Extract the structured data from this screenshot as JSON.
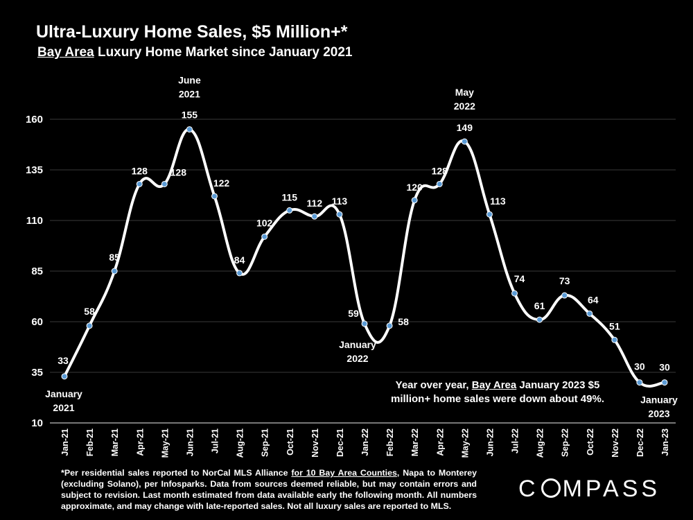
{
  "title": "Ultra-Luxury Home Sales, $5 Million+*",
  "subtitle": {
    "underlined": "Bay Area",
    "rest": " Luxury Home Market since January 2021"
  },
  "chart_data": {
    "type": "line",
    "title": "Ultra-Luxury Home Sales, $5 Million+*",
    "categories": [
      "Jan-21",
      "Feb-21",
      "Mar-21",
      "Apr-21",
      "May-21",
      "Jun-21",
      "Jul-21",
      "Aug-21",
      "Sep-21",
      "Oct-21",
      "Nov-21",
      "Dec-21",
      "Jan-22",
      "Feb-22",
      "Mar-22",
      "Apr-22",
      "May-22",
      "Jun-22",
      "Jul-22",
      "Aug-22",
      "Sep-22",
      "Oct-22",
      "Nov-22",
      "Dec-22",
      "Jan-23"
    ],
    "values": [
      33,
      58,
      85,
      128,
      128,
      155,
      122,
      84,
      102,
      115,
      112,
      113,
      59,
      58,
      120,
      128,
      149,
      113,
      74,
      61,
      73,
      64,
      51,
      30,
      30
    ],
    "yticks": [
      10,
      35,
      60,
      85,
      110,
      135,
      160
    ],
    "ylim": [
      10,
      160
    ],
    "grid": true,
    "line_color": "#ffffff",
    "marker_color": "#5b9bd5",
    "callouts": [
      {
        "index": 0,
        "lines": [
          "January",
          "2021"
        ],
        "pos": "below"
      },
      {
        "index": 5,
        "lines": [
          "June",
          "2021"
        ],
        "pos": "above"
      },
      {
        "index": 12,
        "lines": [
          "January",
          "2022"
        ],
        "pos": "below"
      },
      {
        "index": 16,
        "lines": [
          "May",
          "2022"
        ],
        "pos": "above"
      },
      {
        "index": 24,
        "lines": [
          "January",
          "2023"
        ],
        "pos": "below"
      }
    ]
  },
  "annotation": {
    "part1": "Year over year, ",
    "underlined": "Bay Area",
    "part2": " January 2023 $5 million+ home sales were down about 49%."
  },
  "footnote": {
    "part1": "*Per residential sales reported to NorCal MLS Alliance ",
    "underlined": "for 10 Bay Area Counties",
    "part2": ", Napa to Monterey (excluding Solano), per Infosparks. Data from sources deemed reliable, but may contain errors and subject to revision. Last month estimated from data available early the following month. All numbers approximate, and may change with late-reported sales. Not all luxury sales are reported to MLS."
  },
  "logo": {
    "before": "C",
    "after": "MPASS"
  }
}
